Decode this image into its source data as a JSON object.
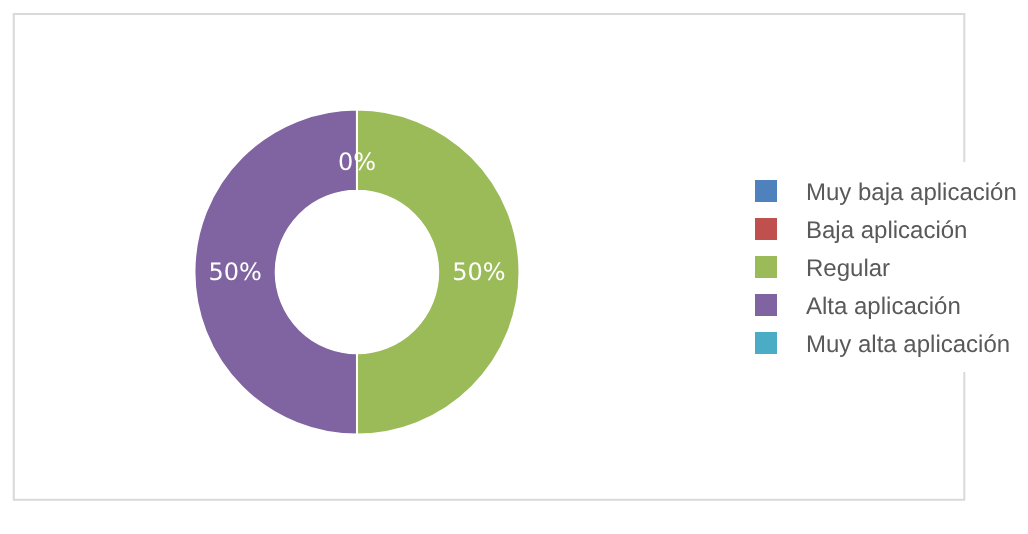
{
  "chart_data": {
    "type": "donut",
    "categories": [
      "Muy baja aplicación",
      "Baja aplicación",
      "Regular",
      "Alta aplicación",
      "Muy alta aplicación"
    ],
    "values": [
      0,
      0,
      50,
      50,
      0
    ],
    "colors": [
      "#4f81bd",
      "#c0504d",
      "#9bbb59",
      "#8064a2",
      "#4bacc6"
    ],
    "value_labels": [
      "0%",
      null,
      "50%",
      "50%",
      null
    ],
    "legend": "right"
  }
}
